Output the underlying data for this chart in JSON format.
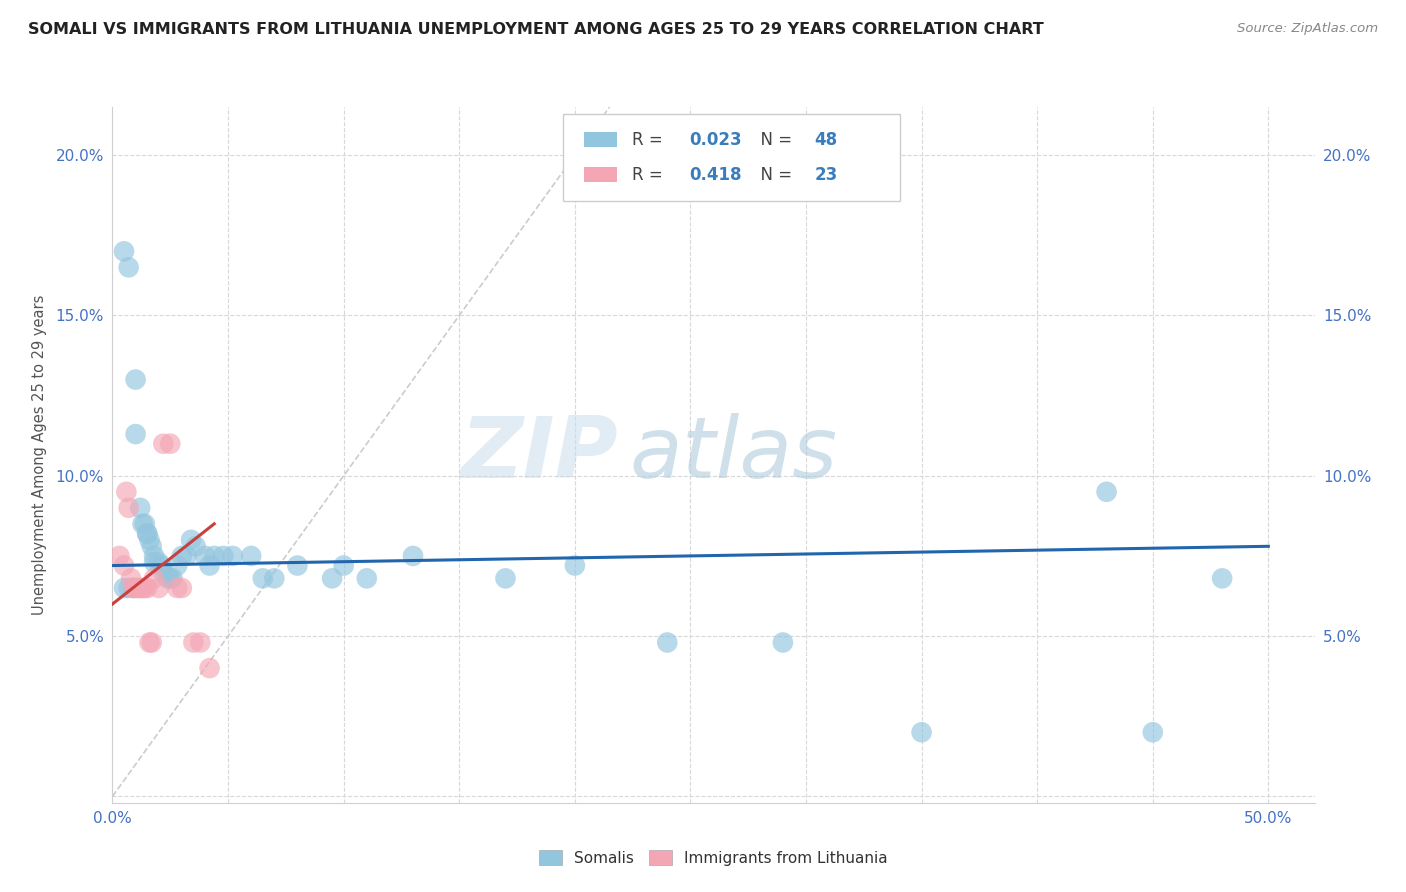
{
  "title": "SOMALI VS IMMIGRANTS FROM LITHUANIA UNEMPLOYMENT AMONG AGES 25 TO 29 YEARS CORRELATION CHART",
  "source": "Source: ZipAtlas.com",
  "ylabel": "Unemployment Among Ages 25 to 29 years",
  "xlim": [
    0.0,
    0.52
  ],
  "ylim": [
    -0.002,
    0.215
  ],
  "xtick_positions": [
    0.0,
    0.05,
    0.1,
    0.15,
    0.2,
    0.25,
    0.3,
    0.35,
    0.4,
    0.45,
    0.5
  ],
  "ytick_positions": [
    0.0,
    0.05,
    0.1,
    0.15,
    0.2
  ],
  "xticklabels": [
    "0.0%",
    "",
    "",
    "",
    "",
    "",
    "",
    "",
    "",
    "",
    "50.0%"
  ],
  "yticklabels": [
    "",
    "5.0%",
    "10.0%",
    "15.0%",
    "20.0%"
  ],
  "somali_R": 0.023,
  "somali_N": 48,
  "lithuania_R": 0.418,
  "lithuania_N": 23,
  "somali_color": "#92c5de",
  "lithuania_color": "#f4a6b4",
  "somali_line_color": "#2166ac",
  "lithuania_line_color": "#c94040",
  "diagonal_color": "#cccccc",
  "watermark_zip": "ZIP",
  "watermark_atlas": "atlas",
  "somali_x": [
    0.005,
    0.007,
    0.01,
    0.01,
    0.012,
    0.013,
    0.014,
    0.015,
    0.015,
    0.016,
    0.017,
    0.018,
    0.018,
    0.02,
    0.021,
    0.022,
    0.024,
    0.025,
    0.026,
    0.028,
    0.03,
    0.032,
    0.034,
    0.036,
    0.04,
    0.042,
    0.044,
    0.048,
    0.052,
    0.06,
    0.065,
    0.07,
    0.08,
    0.095,
    0.1,
    0.11,
    0.13,
    0.17,
    0.2,
    0.24,
    0.29,
    0.35,
    0.43,
    0.45,
    0.48,
    0.005,
    0.007,
    0.009
  ],
  "somali_y": [
    0.17,
    0.165,
    0.13,
    0.113,
    0.09,
    0.085,
    0.085,
    0.082,
    0.082,
    0.08,
    0.078,
    0.075,
    0.073,
    0.073,
    0.072,
    0.07,
    0.068,
    0.068,
    0.068,
    0.072,
    0.075,
    0.075,
    0.08,
    0.078,
    0.075,
    0.072,
    0.075,
    0.075,
    0.075,
    0.075,
    0.068,
    0.068,
    0.072,
    0.068,
    0.072,
    0.068,
    0.075,
    0.068,
    0.072,
    0.048,
    0.048,
    0.02,
    0.095,
    0.02,
    0.068,
    0.065,
    0.065,
    0.065
  ],
  "lithuania_x": [
    0.003,
    0.005,
    0.006,
    0.007,
    0.008,
    0.009,
    0.01,
    0.011,
    0.012,
    0.013,
    0.014,
    0.015,
    0.016,
    0.017,
    0.018,
    0.02,
    0.022,
    0.025,
    0.028,
    0.03,
    0.035,
    0.038,
    0.042
  ],
  "lithuania_y": [
    0.075,
    0.072,
    0.095,
    0.09,
    0.068,
    0.065,
    0.065,
    0.065,
    0.065,
    0.065,
    0.065,
    0.065,
    0.048,
    0.048,
    0.068,
    0.065,
    0.11,
    0.11,
    0.065,
    0.065,
    0.048,
    0.048,
    0.04
  ],
  "somali_line_x": [
    0.0,
    0.5
  ],
  "somali_line_y": [
    0.072,
    0.078
  ],
  "lithuania_line_x": [
    0.0,
    0.044
  ],
  "lithuania_line_y": [
    0.06,
    0.085
  ]
}
